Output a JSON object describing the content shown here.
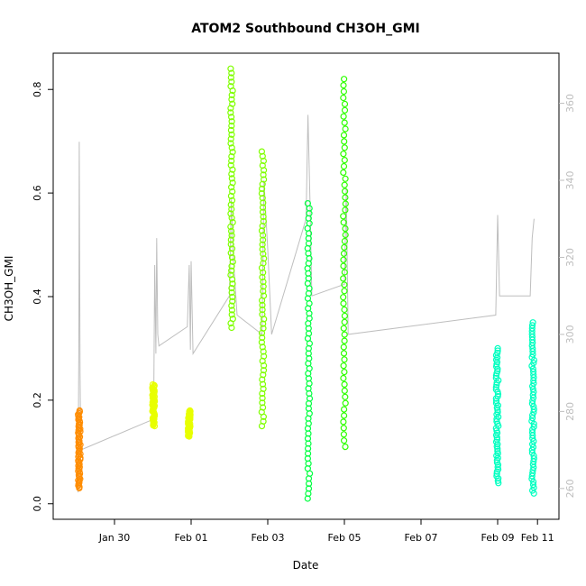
{
  "chart_data": {
    "type": "scatter",
    "title": "ATOM2 Southbound CH3OH_GMI",
    "xlabel": "Date",
    "ylabel": "CH3OH_GMI",
    "x_ticks": [
      "Jan 30",
      "Feb 01",
      "Feb 03",
      "Feb 05",
      "Feb 07",
      "Feb 09",
      "Feb 11"
    ],
    "y_ticks": [
      "0.0",
      "0.2",
      "0.4",
      "0.6",
      "0.8"
    ],
    "y2_ticks": [
      "260",
      "280",
      "300",
      "320",
      "340",
      "360"
    ],
    "xlim": [
      -2.6,
      10.6
    ],
    "ylim": [
      -0.03,
      0.87
    ],
    "y2lim": [
      252,
      373
    ],
    "series": [
      {
        "color": "#ff8c00",
        "segments": [
          [
            -1.92,
            0.03,
            0.18
          ]
        ]
      },
      {
        "color": "#e8ff00",
        "segments": [
          [
            0.02,
            0.15,
            0.23
          ],
          [
            0.95,
            0.13,
            0.18
          ]
        ]
      },
      {
        "color": "#7fff00",
        "segments": [
          [
            2.06,
            0.34,
            0.84
          ],
          [
            2.87,
            0.15,
            0.68
          ]
        ]
      },
      {
        "color": "#2eff00",
        "segments": [
          [
            5.0,
            0.11,
            0.82
          ]
        ]
      },
      {
        "color": "#00ff40",
        "segments": [
          [
            4.07,
            0.01,
            0.58
          ]
        ]
      },
      {
        "color": "#00ffc0",
        "segments": [
          [
            8.99,
            0.04,
            0.3
          ],
          [
            9.92,
            0.02,
            0.35
          ]
        ]
      }
    ],
    "secondary_line": {
      "color": "#bebebe",
      "points": [
        [
          -1.95,
          259
        ],
        [
          -1.93,
          300
        ],
        [
          -1.92,
          350
        ],
        [
          -1.9,
          290
        ],
        [
          -1.88,
          270
        ],
        [
          0.02,
          278
        ],
        [
          0.05,
          318
        ],
        [
          0.08,
          295
        ],
        [
          0.1,
          325
        ],
        [
          0.13,
          300
        ],
        [
          0.16,
          297
        ],
        [
          0.9,
          302
        ],
        [
          0.95,
          318
        ],
        [
          0.98,
          296
        ],
        [
          1.0,
          319
        ],
        [
          1.05,
          295
        ],
        [
          2.0,
          310
        ],
        [
          2.05,
          335
        ],
        [
          2.1,
          320
        ],
        [
          2.2,
          305
        ],
        [
          2.85,
          300
        ],
        [
          2.9,
          340
        ],
        [
          3.0,
          322
        ],
        [
          3.1,
          300
        ],
        [
          4.0,
          330
        ],
        [
          4.05,
          357
        ],
        [
          4.1,
          335
        ],
        [
          4.15,
          310
        ],
        [
          5.0,
          313
        ],
        [
          5.05,
          338
        ],
        [
          5.1,
          300
        ],
        [
          8.95,
          305
        ],
        [
          9.0,
          331
        ],
        [
          9.05,
          310
        ],
        [
          9.85,
          310
        ],
        [
          9.9,
          325
        ],
        [
          9.95,
          330
        ]
      ]
    }
  }
}
